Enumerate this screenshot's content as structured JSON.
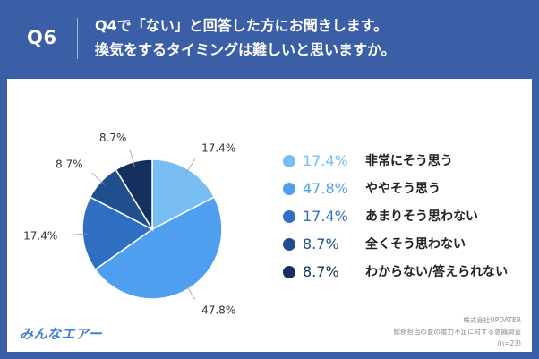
{
  "header": {
    "qnum": "Q6",
    "title_line1": "Q4で「ない」と回答した方にお聞きします。",
    "title_line2": "換気をするタイミングは難しいと思いますか。"
  },
  "chart_data": {
    "type": "pie",
    "title": "",
    "start_angle_deg": 0,
    "direction": "clockwise",
    "slices": [
      {
        "label": "非常にそう思う",
        "value": 17.4,
        "display": "17.4%",
        "color": "#78bef5"
      },
      {
        "label": "ややそう思う",
        "value": 47.8,
        "display": "47.8%",
        "color": "#4f9ff0"
      },
      {
        "label": "あまりそう思わない",
        "value": 17.4,
        "display": "17.4%",
        "color": "#2e6fc2"
      },
      {
        "label": "全くそう思わない",
        "value": 8.7,
        "display": "8.7%",
        "color": "#1f4f8f"
      },
      {
        "label": "わからない/答えられない",
        "value": 8.7,
        "display": "8.7%",
        "color": "#14305e"
      }
    ],
    "legend_placement": "right"
  },
  "legend": {
    "items": [
      {
        "pct": "17.4%",
        "label": "非常にそう思う",
        "color": "#78bef5"
      },
      {
        "pct": "47.8%",
        "label": "ややそう思う",
        "color": "#4f9ff0"
      },
      {
        "pct": "17.4%",
        "label": "あまりそう思わない",
        "color": "#2e6fc2"
      },
      {
        "pct": "8.7%",
        "label": "全くそう思わない",
        "color": "#1f4f8f"
      },
      {
        "pct": "8.7%",
        "label": "わからない/答えられない",
        "color": "#14305e"
      }
    ]
  },
  "footer": {
    "logo_text": "みんなエアー",
    "source_company": "株式会社UPDATER",
    "source_survey": "総務担当の夏の電力不足に対する意識調査",
    "source_n": "(n=23)"
  },
  "colors": {
    "background": "#3b5fa6",
    "panel": "#ffffff"
  }
}
